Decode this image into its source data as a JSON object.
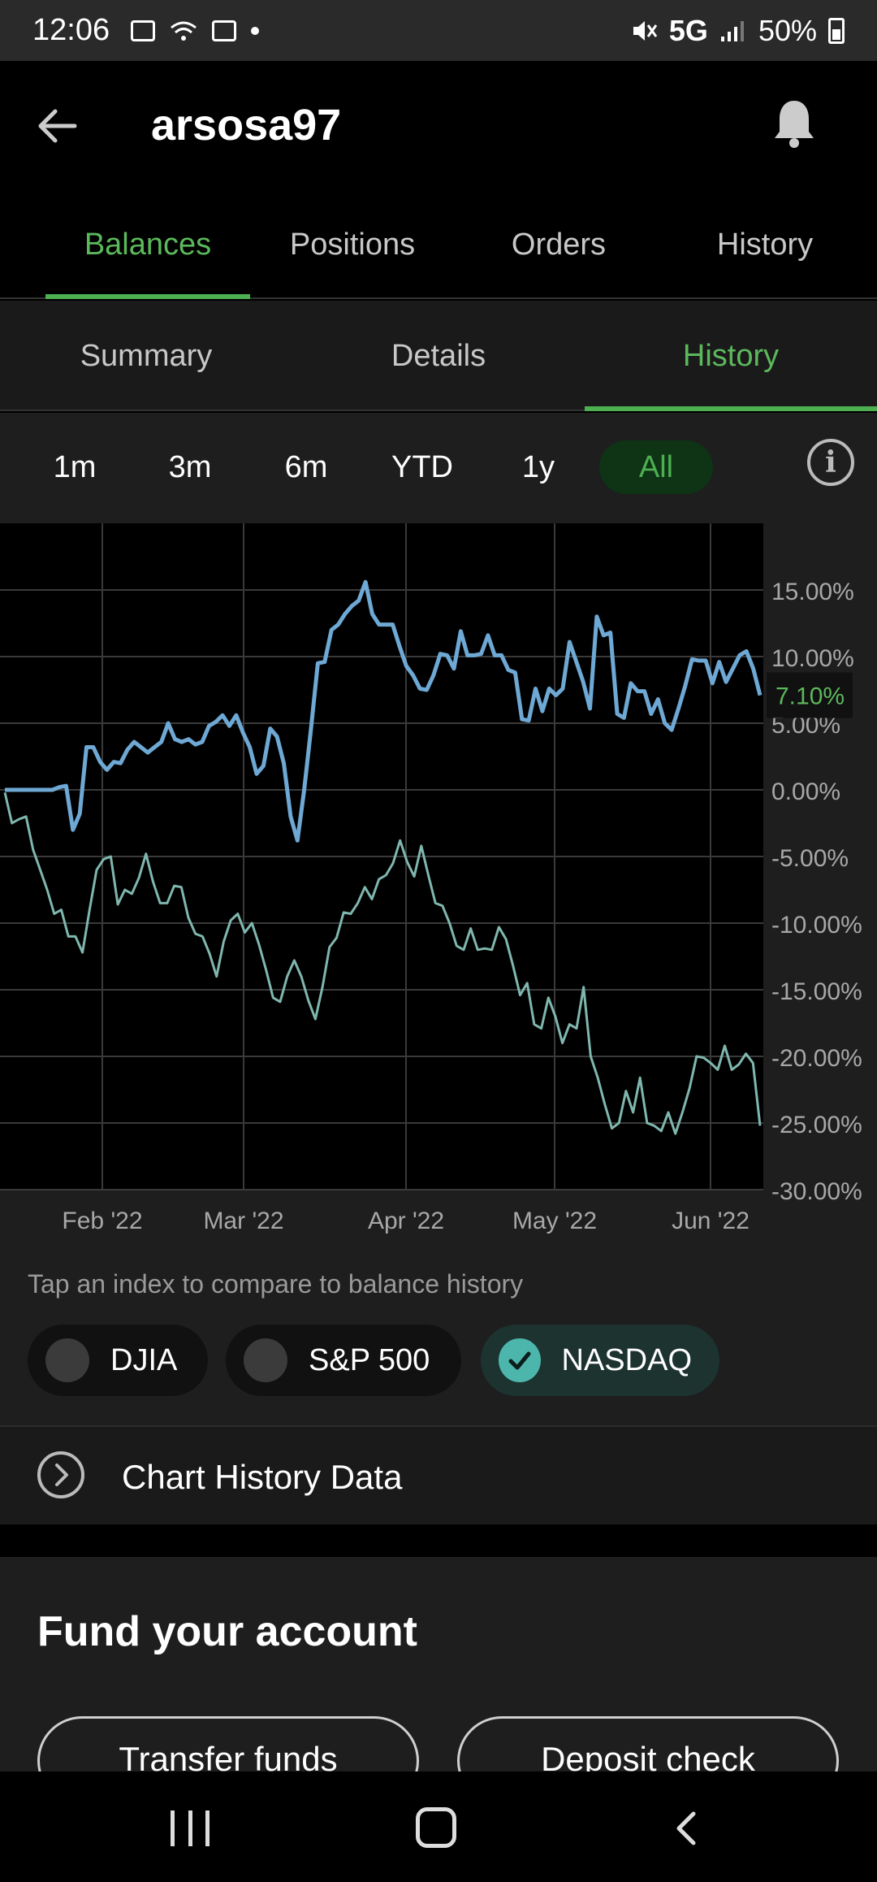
{
  "status_bar": {
    "time": "12:06",
    "network": "5G",
    "battery": "50%"
  },
  "header": {
    "title": "arsosa97",
    "icons": {
      "back": "arrow-left-icon",
      "notifications": "bell-icon"
    }
  },
  "main_tabs": [
    {
      "label": "Balances",
      "active": true
    },
    {
      "label": "Positions",
      "active": false
    },
    {
      "label": "Orders",
      "active": false
    },
    {
      "label": "History",
      "active": false
    }
  ],
  "sub_tabs": [
    {
      "label": "Summary",
      "active": false
    },
    {
      "label": "Details",
      "active": false
    },
    {
      "label": "History",
      "active": true
    }
  ],
  "ranges": [
    {
      "label": "1m",
      "active": false
    },
    {
      "label": "3m",
      "active": false
    },
    {
      "label": "6m",
      "active": false
    },
    {
      "label": "YTD",
      "active": false
    },
    {
      "label": "1y",
      "active": false
    },
    {
      "label": "All",
      "active": true
    }
  ],
  "colors": {
    "accent": "#4caf50",
    "balance_line": "#6ea8d4",
    "nasdaq_line": "#7fb7ae",
    "current_label": "#5cb85c"
  },
  "chart_data": {
    "type": "line",
    "x_ticks": [
      "Feb '22",
      "Mar '22",
      "Apr '22",
      "May '22",
      "Jun '22"
    ],
    "y_ticks": [
      "15.00%",
      "10.00%",
      "5.00%",
      "0.00%",
      "-5.00%",
      "-10.00%",
      "-15.00%",
      "-20.00%",
      "-25.00%",
      "-30.00%"
    ],
    "ylim": [
      -30,
      20
    ],
    "current_value_label": "7.10%",
    "grid": true,
    "series": [
      {
        "values": [
          0,
          0,
          0,
          0,
          0,
          0,
          0,
          0,
          0.2,
          0.3,
          -3,
          -1.8,
          3.2,
          3.2,
          2.1,
          1.5,
          2.1,
          2,
          3,
          3.6,
          3.2,
          2.8,
          3.2,
          3.6,
          5,
          3.8,
          3.6,
          3.8,
          3.4,
          3.6,
          4.8,
          5.1,
          5.6,
          4.8,
          5.6,
          4.3,
          3.2,
          1.2,
          1.8,
          4.6,
          4,
          2,
          -2,
          -3.8,
          0,
          4.6,
          9.5,
          9.6,
          12,
          12.4,
          13.2,
          13.8,
          14.2,
          15.6,
          13.2,
          12.4,
          12.4,
          12.4,
          10.8,
          9.3,
          8.6,
          7.6,
          7.5,
          8.6,
          10.2,
          10.1,
          9.1,
          11.9,
          10.1,
          10.1,
          10.2,
          11.6,
          10.1,
          10.1,
          9,
          8.8,
          5.3,
          5.2,
          7.6,
          5.9,
          7.6,
          7.1,
          7.6,
          11.1,
          9.6,
          8.1,
          6.1,
          13,
          11.6,
          11.8,
          5.7,
          5.4,
          8,
          7.4,
          7.4,
          5.7,
          6.8,
          5,
          4.5,
          6.1,
          7.8,
          9.8,
          9.7,
          9.7,
          8,
          9.6,
          8.1,
          9.1,
          10.1,
          10.4,
          9.1,
          7.1
        ]
      },
      {
        "name": "NASDAQ",
        "values": [
          -0.2,
          -2.5,
          -2.2,
          -2,
          -4.5,
          -6,
          -7.5,
          -9.3,
          -9,
          -11,
          -11,
          -12.2,
          -9,
          -6,
          -5.2,
          -5,
          -8.6,
          -7.5,
          -7.8,
          -6.6,
          -4.8,
          -6.9,
          -8.5,
          -8.5,
          -7.2,
          -7.3,
          -9.6,
          -10.8,
          -11,
          -12.3,
          -14,
          -11.4,
          -9.8,
          -9.3,
          -10.7,
          -10,
          -11.6,
          -13.5,
          -15.6,
          -15.9,
          -14,
          -12.8,
          -14,
          -15.8,
          -17.2,
          -14.8,
          -11.8,
          -11.1,
          -9.2,
          -9.3,
          -8.5,
          -7.3,
          -8.2,
          -6.7,
          -6.4,
          -5.5,
          -3.8,
          -5.4,
          -6.5,
          -4.2,
          -6.4,
          -8.5,
          -8.7,
          -10,
          -11.7,
          -12,
          -10.4,
          -12,
          -11.9,
          -12,
          -10.3,
          -11.2,
          -13.2,
          -15.4,
          -14.5,
          -17.6,
          -17.9,
          -15.6,
          -17,
          -19,
          -17.6,
          -17.9,
          -14.8,
          -20,
          -21.6,
          -23.6,
          -25.4,
          -25,
          -22.6,
          -24.2,
          -21.6,
          -25,
          -25.2,
          -25.6,
          -24.2,
          -25.8,
          -24.2,
          -22.4,
          -20,
          -20.1,
          -20.5,
          -21,
          -19.2,
          -21,
          -20.6,
          -19.8,
          -20.5,
          -25.2
        ]
      }
    ]
  },
  "compare": {
    "hint": "Tap an index to compare to balance history",
    "indices": [
      {
        "label": "DJIA",
        "selected": false
      },
      {
        "label": "S&P 500",
        "selected": false
      },
      {
        "label": "NASDAQ",
        "selected": true
      }
    ]
  },
  "chart_history": {
    "label": "Chart History Data",
    "icon": "chevron-right-circle-icon"
  },
  "fund": {
    "heading": "Fund your account",
    "buttons": [
      "Transfer funds",
      "Deposit check"
    ]
  }
}
